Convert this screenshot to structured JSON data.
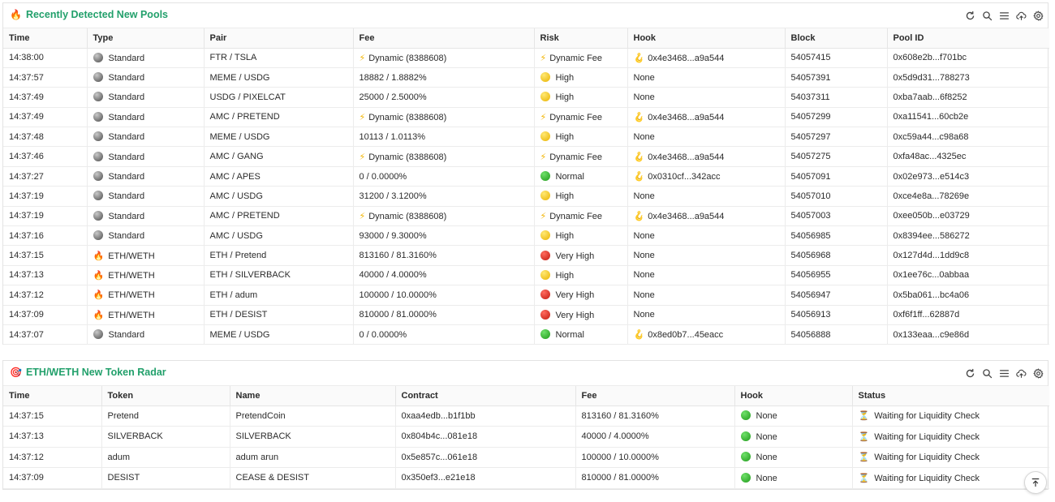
{
  "colors": {
    "title": "#22a06b",
    "accent_green": "#1f9a1a",
    "accent_yellow": "#e9b300",
    "accent_red": "#c21a10"
  },
  "toolbar_icons": [
    "refresh-icon",
    "search-icon",
    "menu-icon",
    "cloud-upload-icon",
    "gear-icon"
  ],
  "pools": {
    "title": "Recently Detected New Pools",
    "title_icon": "🔥",
    "columns": [
      "Time",
      "Type",
      "Pair",
      "Fee",
      "Risk",
      "Hook",
      "Block",
      "Pool ID"
    ],
    "rows": [
      {
        "time": "14:38:00",
        "type": "Standard",
        "type_icon": "grey-ball",
        "pair": "FTR / TSLA",
        "fee": "Dynamic (8388608)",
        "fee_icon": "bolt",
        "risk": "Dynamic Fee",
        "risk_icon": "bolt",
        "hook": "0x4e3468...a9a544",
        "hook_icon": "hook",
        "block": "54057415",
        "pool_id": "0x608e2b...f701bc"
      },
      {
        "time": "14:37:57",
        "type": "Standard",
        "type_icon": "grey-ball",
        "pair": "MEME / USDG",
        "fee": "18882 / 1.8882%",
        "fee_icon": "",
        "risk": "High",
        "risk_icon": "yellow",
        "hook": "None",
        "hook_icon": "",
        "block": "54057391",
        "pool_id": "0x5d9d31...788273"
      },
      {
        "time": "14:37:49",
        "type": "Standard",
        "type_icon": "grey-ball",
        "pair": "USDG / PIXELCAT",
        "fee": "25000 / 2.5000%",
        "fee_icon": "",
        "risk": "High",
        "risk_icon": "yellow",
        "hook": "None",
        "hook_icon": "",
        "block": "54037311",
        "pool_id": "0xba7aab...6f8252"
      },
      {
        "time": "14:37:49",
        "type": "Standard",
        "type_icon": "grey-ball",
        "pair": "AMC / PRETEND",
        "fee": "Dynamic (8388608)",
        "fee_icon": "bolt",
        "risk": "Dynamic Fee",
        "risk_icon": "bolt",
        "hook": "0x4e3468...a9a544",
        "hook_icon": "hook",
        "block": "54057299",
        "pool_id": "0xa11541...60cb2e"
      },
      {
        "time": "14:37:48",
        "type": "Standard",
        "type_icon": "grey-ball",
        "pair": "MEME / USDG",
        "fee": "10113 / 1.0113%",
        "fee_icon": "",
        "risk": "High",
        "risk_icon": "yellow",
        "hook": "None",
        "hook_icon": "",
        "block": "54057297",
        "pool_id": "0xc59a44...c98a68"
      },
      {
        "time": "14:37:46",
        "type": "Standard",
        "type_icon": "grey-ball",
        "pair": "AMC / GANG",
        "fee": "Dynamic (8388608)",
        "fee_icon": "bolt",
        "risk": "Dynamic Fee",
        "risk_icon": "bolt",
        "hook": "0x4e3468...a9a544",
        "hook_icon": "hook",
        "block": "54057275",
        "pool_id": "0xfa48ac...4325ec"
      },
      {
        "time": "14:37:27",
        "type": "Standard",
        "type_icon": "grey-ball",
        "pair": "AMC / APES",
        "fee": "0 / 0.0000%",
        "fee_icon": "",
        "risk": "Normal",
        "risk_icon": "green",
        "hook": "0x0310cf...342acc",
        "hook_icon": "hook",
        "block": "54057091",
        "pool_id": "0x02e973...e514c3"
      },
      {
        "time": "14:37:19",
        "type": "Standard",
        "type_icon": "grey-ball",
        "pair": "AMC / USDG",
        "fee": "31200 / 3.1200%",
        "fee_icon": "",
        "risk": "High",
        "risk_icon": "yellow",
        "hook": "None",
        "hook_icon": "",
        "block": "54057010",
        "pool_id": "0xce4e8a...78269e"
      },
      {
        "time": "14:37:19",
        "type": "Standard",
        "type_icon": "grey-ball",
        "pair": "AMC / PRETEND",
        "fee": "Dynamic (8388608)",
        "fee_icon": "bolt",
        "risk": "Dynamic Fee",
        "risk_icon": "bolt",
        "hook": "0x4e3468...a9a544",
        "hook_icon": "hook",
        "block": "54057003",
        "pool_id": "0xee050b...e03729"
      },
      {
        "time": "14:37:16",
        "type": "Standard",
        "type_icon": "grey-ball",
        "pair": "AMC / USDG",
        "fee": "93000 / 9.3000%",
        "fee_icon": "",
        "risk": "High",
        "risk_icon": "yellow",
        "hook": "None",
        "hook_icon": "",
        "block": "54056985",
        "pool_id": "0x8394ee...586272"
      },
      {
        "time": "14:37:15",
        "type": "ETH/WETH",
        "type_icon": "fire",
        "pair": "ETH / Pretend",
        "fee": "813160 / 81.3160%",
        "fee_icon": "",
        "risk": "Very High",
        "risk_icon": "red",
        "hook": "None",
        "hook_icon": "",
        "block": "54056968",
        "pool_id": "0x127d4d...1dd9c8"
      },
      {
        "time": "14:37:13",
        "type": "ETH/WETH",
        "type_icon": "fire",
        "pair": "ETH / SILVERBACK",
        "fee": "40000 / 4.0000%",
        "fee_icon": "",
        "risk": "High",
        "risk_icon": "yellow",
        "hook": "None",
        "hook_icon": "",
        "block": "54056955",
        "pool_id": "0x1ee76c...0abbaa"
      },
      {
        "time": "14:37:12",
        "type": "ETH/WETH",
        "type_icon": "fire",
        "pair": "ETH / adum",
        "fee": "100000 / 10.0000%",
        "fee_icon": "",
        "risk": "Very High",
        "risk_icon": "red",
        "hook": "None",
        "hook_icon": "",
        "block": "54056947",
        "pool_id": "0x5ba061...bc4a06"
      },
      {
        "time": "14:37:09",
        "type": "ETH/WETH",
        "type_icon": "fire",
        "pair": "ETH / DESIST",
        "fee": "810000 / 81.0000%",
        "fee_icon": "",
        "risk": "Very High",
        "risk_icon": "red",
        "hook": "None",
        "hook_icon": "",
        "block": "54056913",
        "pool_id": "0xf6f1ff...62887d"
      },
      {
        "time": "14:37:07",
        "type": "Standard",
        "type_icon": "grey-ball",
        "pair": "MEME / USDG",
        "fee": "0 / 0.0000%",
        "fee_icon": "",
        "risk": "Normal",
        "risk_icon": "green",
        "hook": "0x8ed0b7...45eacc",
        "hook_icon": "hook",
        "block": "54056888",
        "pool_id": "0x133eaa...c9e86d"
      }
    ]
  },
  "radar": {
    "title": "ETH/WETH New Token Radar",
    "title_icon": "🎯",
    "columns": [
      "Time",
      "Token",
      "Name",
      "Contract",
      "Fee",
      "Hook",
      "Status"
    ],
    "rows": [
      {
        "time": "14:37:15",
        "token": "Pretend",
        "name": "PretendCoin",
        "contract": "0xaa4edb...b1f1bb",
        "fee": "813160 / 81.3160%",
        "hook": "None",
        "status": "Waiting for Liquidity Check"
      },
      {
        "time": "14:37:13",
        "token": "SILVERBACK",
        "name": "SILVERBACK",
        "contract": "0x804b4c...081e18",
        "fee": "40000 / 4.0000%",
        "hook": "None",
        "status": "Waiting for Liquidity Check"
      },
      {
        "time": "14:37:12",
        "token": "adum",
        "name": "adum arun",
        "contract": "0x5e857c...061e18",
        "fee": "100000 / 10.0000%",
        "hook": "None",
        "status": "Waiting for Liquidity Check"
      },
      {
        "time": "14:37:09",
        "token": "DESIST",
        "name": "CEASE & DESIST",
        "contract": "0x350ef3...e21e18",
        "fee": "810000 / 81.0000%",
        "hook": "None",
        "status": "Waiting for Liquidity Check"
      }
    ]
  },
  "scroll_top_icon": "arrow-up-to-line-icon"
}
